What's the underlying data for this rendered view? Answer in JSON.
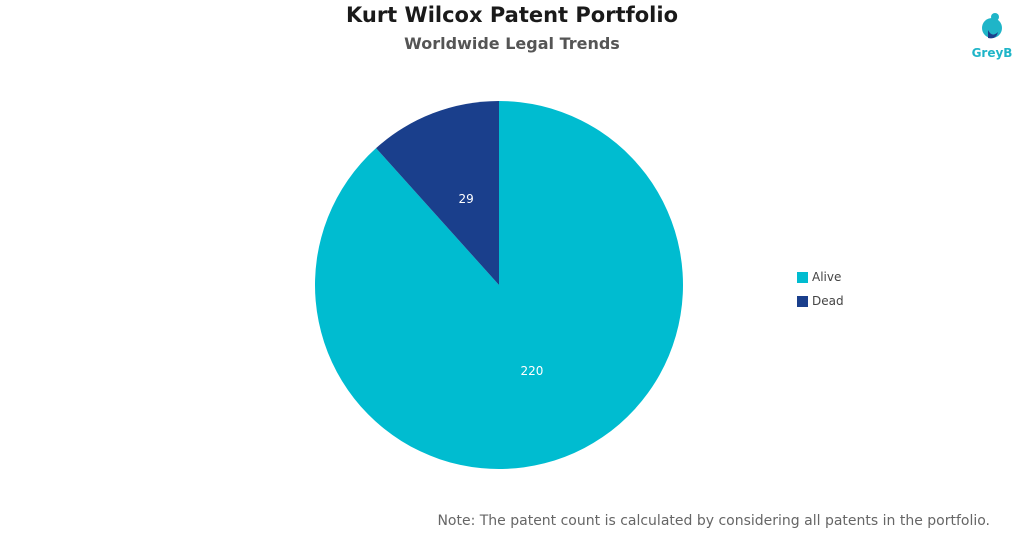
{
  "chart_data": {
    "type": "pie",
    "title": "Kurt Wilcox Patent Portfolio",
    "subtitle": "Worldwide Legal Trends",
    "categories": [
      "Alive",
      "Dead"
    ],
    "values": [
      220,
      29
    ],
    "colors": [
      "#00bcd0",
      "#1a3f8c"
    ],
    "legend_position": "right",
    "data_labels": [
      "220",
      "29"
    ]
  },
  "logo": {
    "text": "GreyB",
    "icon": "greyb-logo-icon"
  },
  "note": "Note: The patent count is calculated by considering all patents in the portfolio."
}
